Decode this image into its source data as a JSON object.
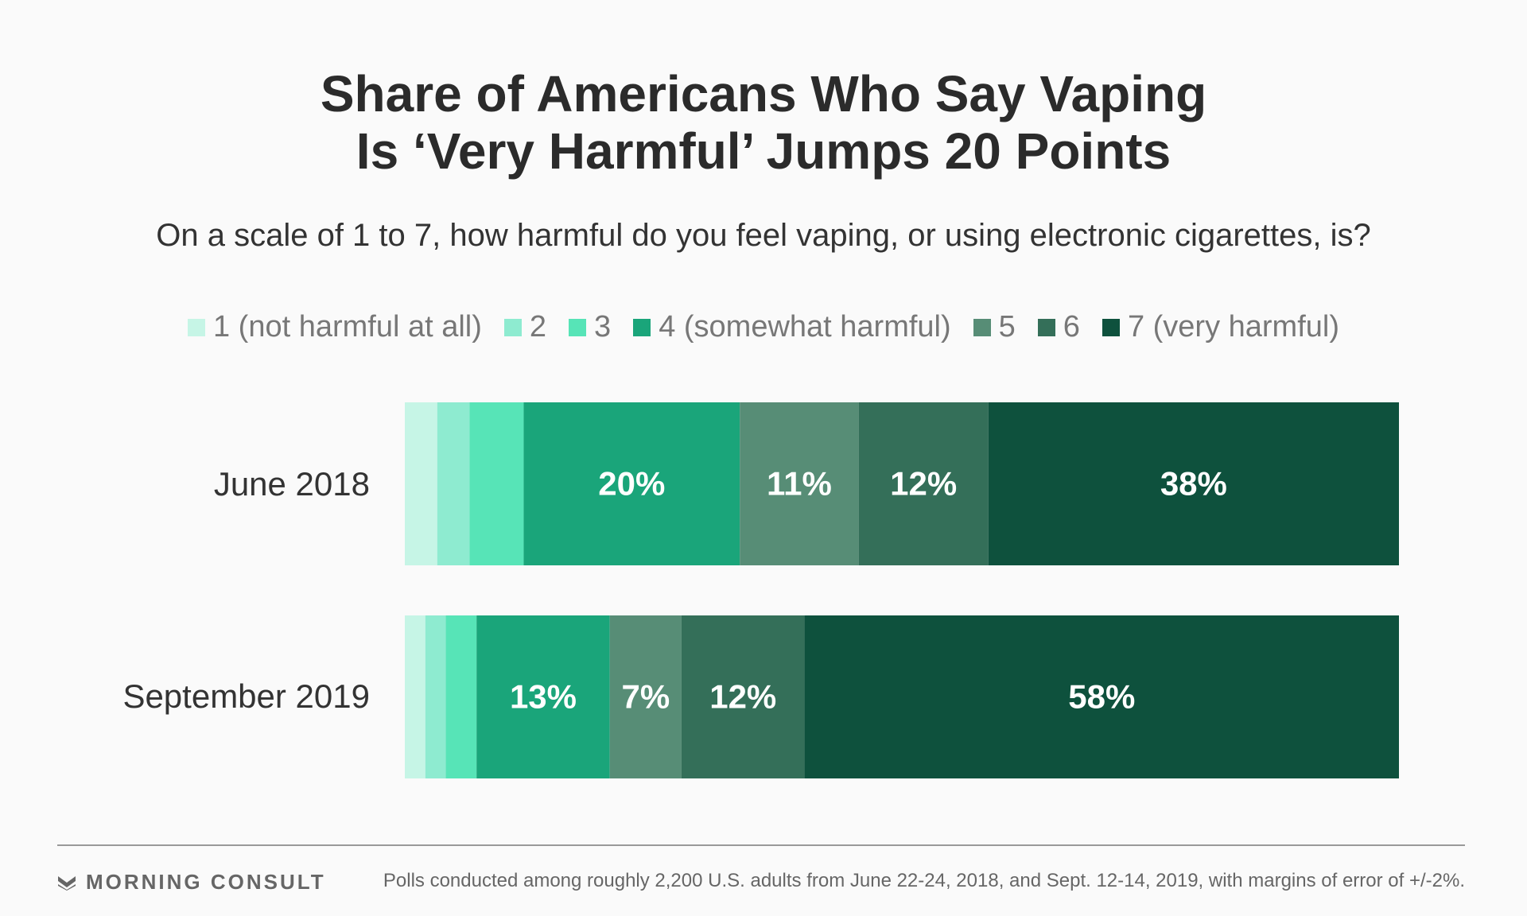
{
  "header": {
    "title_line1": "Share of Americans Who Say Vaping",
    "title_line2": "Is ‘Very Harmful’ Jumps 20 Points",
    "subtitle": "On a scale of 1 to 7, how harmful do you feel vaping, or using electronic cigarettes, is?"
  },
  "legend": [
    {
      "label": "1 (not harmful at all)",
      "color": "#c6f5e6"
    },
    {
      "label": "2",
      "color": "#8eebd0"
    },
    {
      "label": "3",
      "color": "#57e4b7"
    },
    {
      "label": "4 (somewhat harmful)",
      "color": "#1aa57a"
    },
    {
      "label": "5",
      "color": "#578d76"
    },
    {
      "label": "6",
      "color": "#346f59"
    },
    {
      "label": "7 (very harmful)",
      "color": "#0e513d"
    }
  ],
  "chart_data": {
    "type": "bar",
    "orientation": "horizontal",
    "stacked": true,
    "categories": [
      "June 2018",
      "September 2019"
    ],
    "series": [
      {
        "name": "1 (not harmful at all)",
        "values": [
          3,
          2
        ],
        "labels": [
          "",
          ""
        ]
      },
      {
        "name": "2",
        "values": [
          3,
          2
        ],
        "labels": [
          "",
          ""
        ]
      },
      {
        "name": "3",
        "values": [
          5,
          3
        ],
        "labels": [
          "",
          ""
        ]
      },
      {
        "name": "4 (somewhat harmful)",
        "values": [
          20,
          13
        ],
        "labels": [
          "20%",
          "13%"
        ]
      },
      {
        "name": "5",
        "values": [
          11,
          7
        ],
        "labels": [
          "11%",
          "7%"
        ]
      },
      {
        "name": "6",
        "values": [
          12,
          12
        ],
        "labels": [
          "12%",
          "12%"
        ]
      },
      {
        "name": "7 (very harmful)",
        "values": [
          38,
          58
        ],
        "labels": [
          "38%",
          "58%"
        ]
      }
    ],
    "legend_position": "top-center",
    "grid": false
  },
  "footer": {
    "brand": "MORNING CONSULT",
    "note": "Polls conducted among roughly 2,200 U.S. adults from June 22-24, 2018, and Sept. 12-14, 2019, with margins of error of +/-2%."
  }
}
